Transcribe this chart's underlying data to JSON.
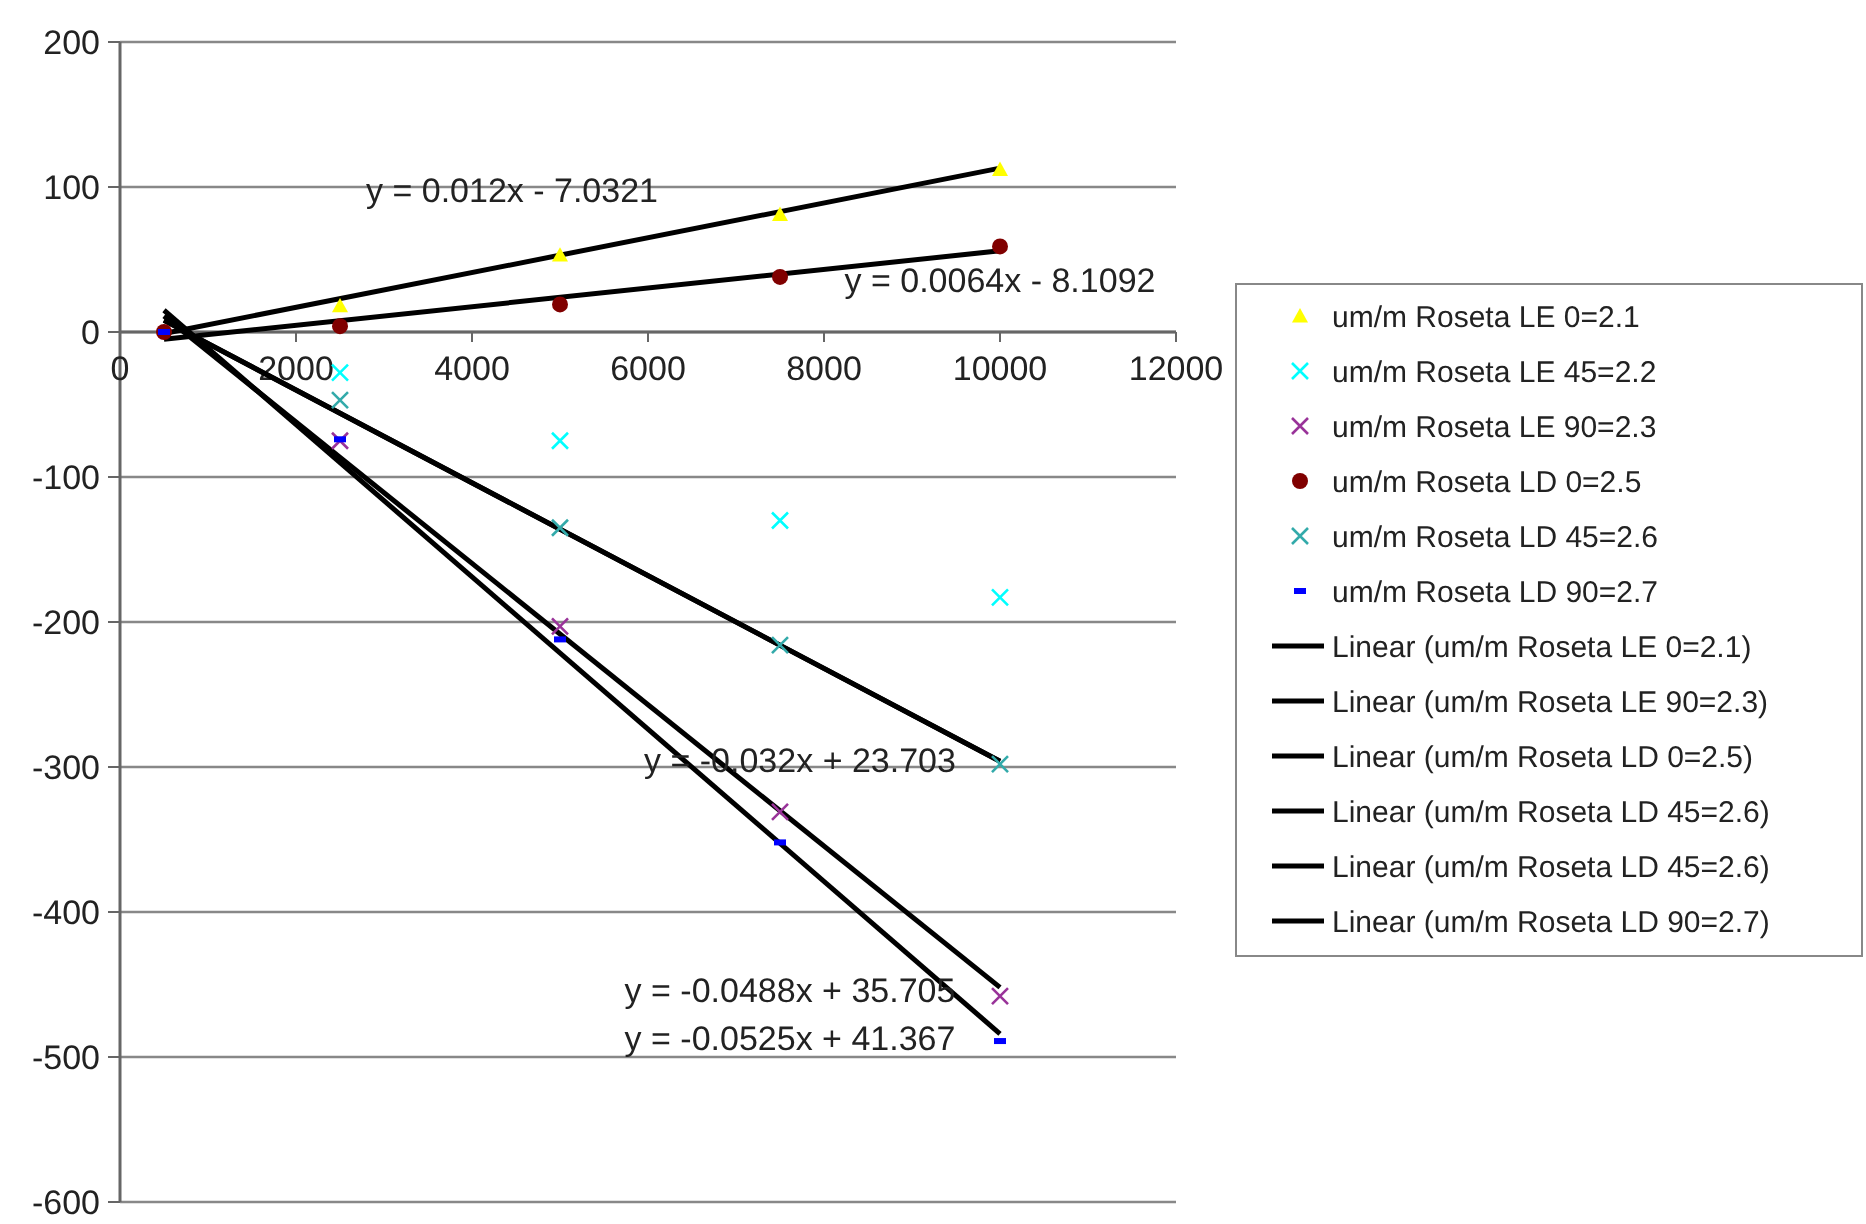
{
  "chart_data": {
    "type": "scatter",
    "xlim": [
      0,
      12000
    ],
    "xticks": [
      0,
      2000,
      4000,
      6000,
      8000,
      10000,
      12000
    ],
    "ylim": [
      -600,
      200
    ],
    "yticks": [
      -600,
      -500,
      -400,
      -300,
      -200,
      -100,
      0,
      100,
      200
    ],
    "grid": "y",
    "legend": "right",
    "series": [
      {
        "name": "um/m Roseta LE 0=2.1",
        "color": "#ffff00",
        "marker": "triangle",
        "x": [
          2500,
          5000,
          7500,
          10000
        ],
        "values": [
          18,
          53,
          81,
          112
        ]
      },
      {
        "name": "um/m Roseta LE 45=2.2",
        "color": "#00ffff",
        "marker": "cross",
        "x": [
          2500,
          5000,
          7500,
          10000
        ],
        "values": [
          -28,
          -75,
          -130,
          -183
        ]
      },
      {
        "name": "um/m Roseta LE 90=2.3",
        "color": "#993399",
        "marker": "cross",
        "x": [
          2500,
          5000,
          7500,
          10000
        ],
        "values": [
          -75,
          -203,
          -331,
          -458
        ]
      },
      {
        "name": "um/m Roseta LD 0=2.5",
        "color": "#800000",
        "marker": "circle",
        "x": [
          500,
          2500,
          5000,
          7500,
          10000
        ],
        "values": [
          0,
          4,
          19,
          38,
          59
        ]
      },
      {
        "name": "um/m Roseta LD 45=2.6",
        "color": "#33aaaa",
        "marker": "cross",
        "x": [
          2500,
          5000,
          7500,
          10000
        ],
        "values": [
          -47,
          -135,
          -216,
          -298
        ]
      },
      {
        "name": "um/m Roseta LD 90=2.7",
        "color": "#0000ff",
        "marker": "square",
        "x": [
          500,
          2500,
          5000,
          7500,
          10000
        ],
        "values": [
          0,
          -74,
          -212,
          -352,
          -489
        ]
      },
      {
        "name": "Linear (um/m Roseta LE 0=2.1)",
        "type": "line",
        "color": "#000000",
        "x": [
          500,
          10000
        ],
        "values": [
          -1,
          113
        ]
      },
      {
        "name": "Linear (um/m Roseta LE 90=2.3)",
        "type": "line",
        "color": "#000000",
        "x": [
          500,
          10000
        ],
        "values": [
          11,
          -452
        ]
      },
      {
        "name": "Linear (um/m Roseta LD 0=2.5)",
        "type": "line",
        "color": "#000000",
        "x": [
          500,
          10000
        ],
        "values": [
          -5,
          56
        ]
      },
      {
        "name": "Linear (um/m Roseta LD 45=2.6)",
        "type": "line",
        "color": "#000000",
        "x": [
          500,
          10000
        ],
        "values": [
          8,
          -296
        ]
      },
      {
        "name": "Linear (um/m Roseta LD 45=2.6)",
        "type": "line",
        "color": "#000000",
        "x": [
          500,
          10000
        ],
        "values": [
          8,
          -296
        ]
      },
      {
        "name": "Linear (um/m Roseta LD 90=2.7)",
        "type": "line",
        "color": "#000000",
        "x": [
          500,
          10000
        ],
        "values": [
          15,
          -484
        ]
      }
    ],
    "annotations": [
      "y = 0.012x - 7.0321",
      "y = 0.0064x - 8.1092",
      "y = -0.032x + 23.703",
      "y = -0.0488x + 35.705",
      "y = -0.0525x + 41.367"
    ]
  }
}
